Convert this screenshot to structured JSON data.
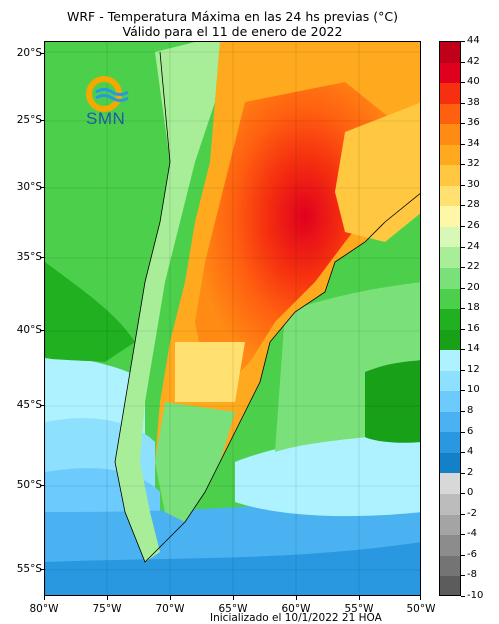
{
  "title": {
    "line1": "WRF - Temperatura Máxima en las 24 hs previas (°C)",
    "line2": "Válido para el 11 de enero de 2022"
  },
  "footer": {
    "init": "Inicializado el 10/1/2022 21 HOA"
  },
  "logo": {
    "text": "SMN",
    "icon": "smn-logo-icon"
  },
  "axes": {
    "lat_labels": [
      "20°S",
      "25°S",
      "30°S",
      "35°S",
      "40°S",
      "45°S",
      "50°S",
      "55°S"
    ],
    "lon_labels": [
      "80°W",
      "75°W",
      "70°W",
      "65°W",
      "60°W",
      "55°W",
      "50°W"
    ]
  },
  "colorbar": {
    "labels": [
      "44",
      "42",
      "40",
      "38",
      "36",
      "34",
      "32",
      "30",
      "28",
      "26",
      "24",
      "22",
      "20",
      "18",
      "16",
      "14",
      "12",
      "10",
      "8",
      "6",
      "4",
      "2",
      "0",
      "-2",
      "-4",
      "-6",
      "-8",
      "-10"
    ],
    "colors": [
      "#c0001a",
      "#e0001e",
      "#f52f0f",
      "#ff6010",
      "#ff8a14",
      "#ffaa1e",
      "#ffc840",
      "#ffe070",
      "#fff7a8",
      "#d8f8b8",
      "#a8ee98",
      "#7ae07a",
      "#4cd04c",
      "#20b020",
      "#18a018",
      "#aef2ff",
      "#8ee0ff",
      "#6ccafc",
      "#4ab2f0",
      "#2a98e0",
      "#1480c8",
      "#d8d8d8",
      "#bcbcbc",
      "#a4a4a4",
      "#8c8c8c",
      "#747474",
      "#5c5c5c"
    ]
  }
}
